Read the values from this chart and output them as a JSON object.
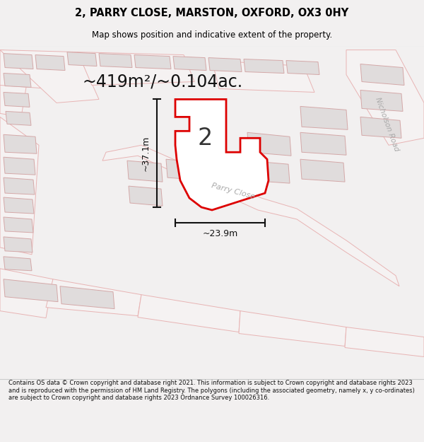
{
  "title": "2, PARRY CLOSE, MARSTON, OXFORD, OX3 0HY",
  "subtitle": "Map shows position and indicative extent of the property.",
  "area_text": "~419m²/~0.104ac.",
  "dim_width": "~23.9m",
  "dim_height": "~37.1m",
  "label_number": "2",
  "road_label_1": "Parry Close",
  "road_label_2": "Nicholson Road",
  "footer": "Contains OS data © Crown copyright and database right 2021. This information is subject to Crown copyright and database rights 2023 and is reproduced with the permission of HM Land Registry. The polygons (including the associated geometry, namely x, y co-ordinates) are subject to Crown copyright and database rights 2023 Ordnance Survey 100026316.",
  "bg_color": "#f2f0f0",
  "map_bg": "#ffffff",
  "road_outline_color": "#e8b4b4",
  "plot_outline_color": "#dd0000",
  "building_fill_color": "#e0dcdc",
  "building_outline_color": "#d4a8a8",
  "text_color": "#000000",
  "footer_color": "#111111",
  "dim_line_color": "#111111",
  "road_label_color": "#aaaaaa",
  "area_text_color": "#111111"
}
